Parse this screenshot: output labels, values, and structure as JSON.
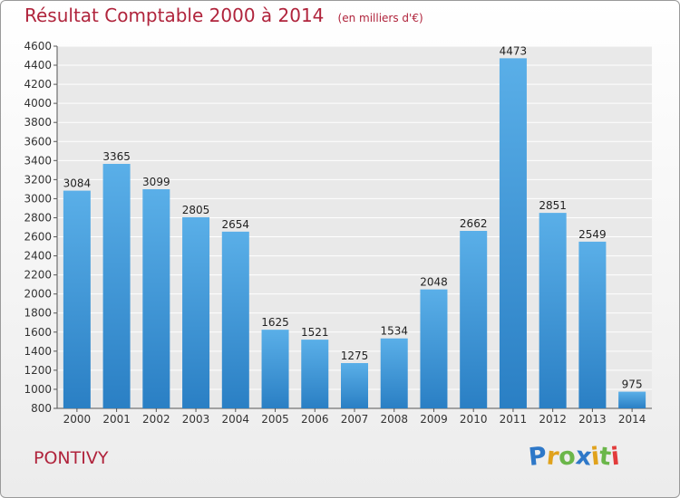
{
  "chart_data": {
    "type": "bar",
    "title": "Résultat Comptable 2000 à 2014",
    "subtitle": "(en milliers d'€)",
    "categories": [
      "2000",
      "2001",
      "2002",
      "2003",
      "2004",
      "2005",
      "2006",
      "2007",
      "2008",
      "2009",
      "2010",
      "2011",
      "2012",
      "2013",
      "2014"
    ],
    "values": [
      3084,
      3365,
      3099,
      2805,
      2654,
      1625,
      1521,
      1275,
      1534,
      2048,
      2662,
      4473,
      2851,
      2549,
      975
    ],
    "data_labels": [
      "3084",
      "3365",
      "3099",
      "2805",
      "2654",
      "1625",
      "1521",
      "1275",
      "1534",
      "2048",
      "2662",
      "4473",
      "2851",
      "2549",
      "975"
    ],
    "ylim": [
      800,
      4600
    ],
    "yticks": [
      "800",
      "1000",
      "1200",
      "1400",
      "1600",
      "1800",
      "2000",
      "2200",
      "2400",
      "2600",
      "2800",
      "3000",
      "3200",
      "3400",
      "3600",
      "3800",
      "4000",
      "4200",
      "4400",
      "4600"
    ],
    "xlabel": "",
    "ylabel": "",
    "grid": true,
    "legend": "none",
    "bar_color": "#3d9ce0"
  },
  "footer": {
    "location": "PONTIVY",
    "brand": "Proxiti",
    "brand_colors": [
      "#2e78c8",
      "#e0a21c",
      "#6bb64a",
      "#2e78c8",
      "#e0a21c",
      "#6bb64a",
      "#e23b3b"
    ]
  }
}
